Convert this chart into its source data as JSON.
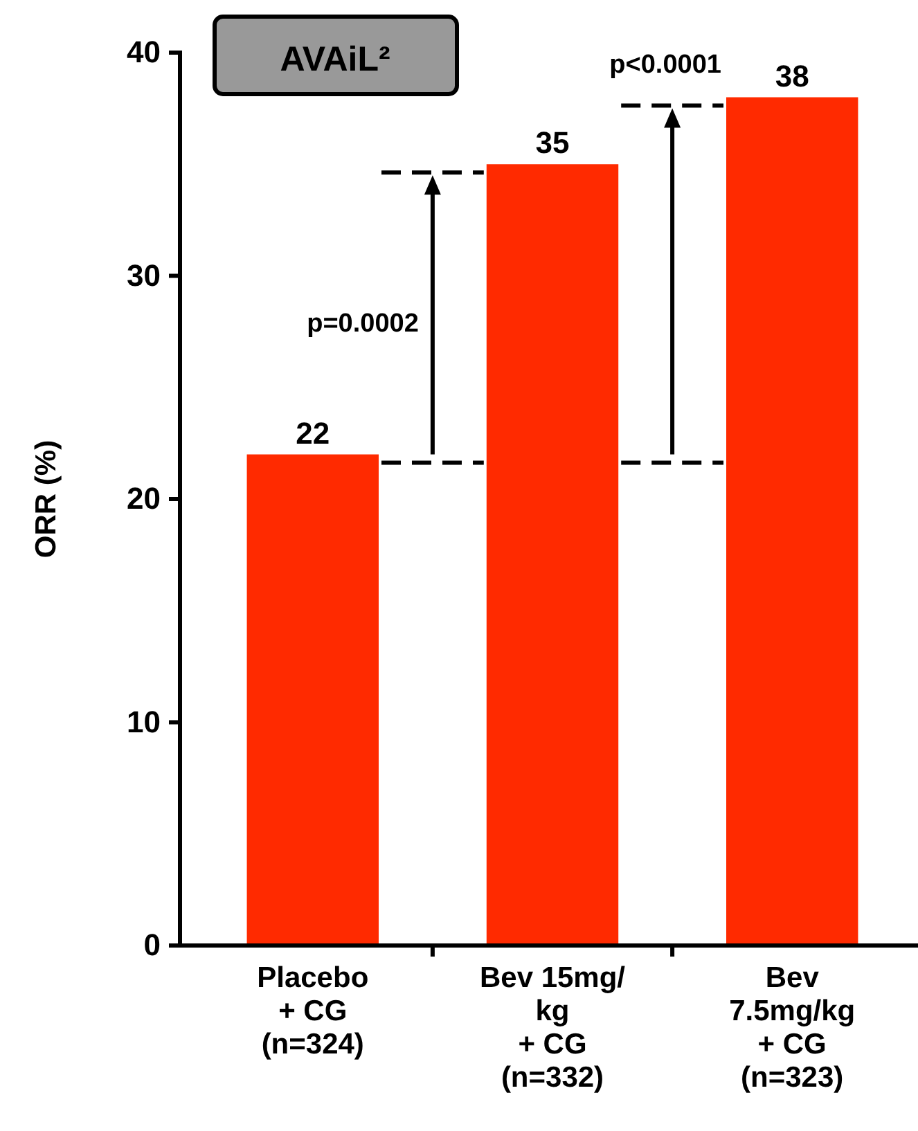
{
  "chart_data": {
    "type": "bar",
    "title": "AVAiL²",
    "ylabel": "ORR (%)",
    "categories": [
      "Placebo\n+ CG\n(n=324)",
      "Bev 15mg/\nkg\n+ CG\n(n=332)",
      "Bev\n7.5mg/kg\n+ CG\n(n=323)"
    ],
    "values": [
      22,
      35,
      38
    ],
    "color": "#ff2a00",
    "data_labels": true,
    "ylim": [
      0,
      40
    ],
    "yticks": [
      0,
      10,
      20,
      30,
      40
    ],
    "grid": false,
    "annotations": [
      "p=0.0002",
      "p<0.0001"
    ]
  }
}
